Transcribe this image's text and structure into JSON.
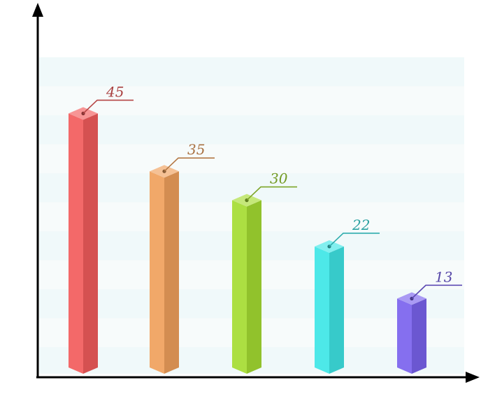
{
  "chart_data": {
    "type": "bar",
    "style": "3d-isometric-columns",
    "categories": [
      "",
      "",
      "",
      "",
      ""
    ],
    "values": [
      45,
      35,
      30,
      22,
      13
    ],
    "data_labels": [
      "45",
      "35",
      "30",
      "22",
      "13"
    ],
    "colors": [
      "#f25c5c",
      "#f0a05c",
      "#a5dc32",
      "#3ee6e6",
      "#7a63ee"
    ],
    "ylim": [
      0,
      55
    ],
    "grid": "horizontal-bands",
    "legend": "none",
    "axis_color": "#000000",
    "band_colors": [
      "#f0f9fa",
      "#f7fbfb"
    ]
  }
}
